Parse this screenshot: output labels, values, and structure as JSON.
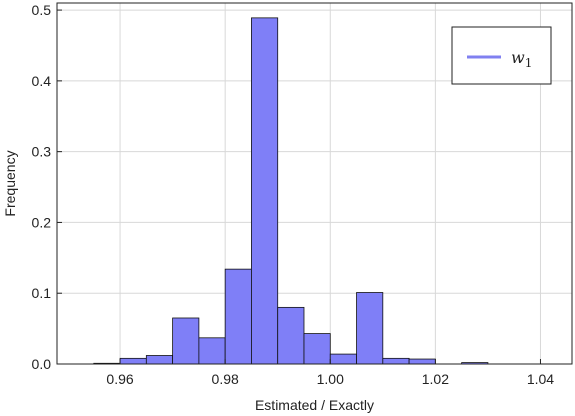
{
  "chart_data": {
    "type": "bar",
    "xlabel": "Estimated / Exactly",
    "ylabel": "Frequency",
    "xlim": [
      0.948,
      1.046
    ],
    "ylim": [
      0,
      0.51
    ],
    "x_ticks": [
      0.96,
      0.98,
      1.0,
      1.02,
      1.04
    ],
    "x_tick_labels": [
      "0.96",
      "0.98",
      "1.00",
      "1.02",
      "1.04"
    ],
    "y_ticks": [
      0.0,
      0.1,
      0.2,
      0.3,
      0.4,
      0.5
    ],
    "y_tick_labels": [
      "0.0",
      "0.1",
      "0.2",
      "0.3",
      "0.4",
      "0.5"
    ],
    "grid": true,
    "legend_position": "top-right",
    "colors": {
      "bar_fill": "#7f7ff7",
      "bar_stroke": "#111111",
      "legend_line": "#8080f0"
    },
    "series": [
      {
        "name": "w1",
        "bin_width": 0.005,
        "bins": [
          {
            "start": 0.955,
            "value": 0.001
          },
          {
            "start": 0.96,
            "value": 0.008
          },
          {
            "start": 0.965,
            "value": 0.012
          },
          {
            "start": 0.97,
            "value": 0.065
          },
          {
            "start": 0.975,
            "value": 0.037
          },
          {
            "start": 0.98,
            "value": 0.134
          },
          {
            "start": 0.985,
            "value": 0.489
          },
          {
            "start": 0.99,
            "value": 0.08
          },
          {
            "start": 0.995,
            "value": 0.043
          },
          {
            "start": 1.0,
            "value": 0.014
          },
          {
            "start": 1.005,
            "value": 0.101
          },
          {
            "start": 1.01,
            "value": 0.008
          },
          {
            "start": 1.015,
            "value": 0.007
          },
          {
            "start": 1.025,
            "value": 0.002
          }
        ]
      }
    ]
  }
}
